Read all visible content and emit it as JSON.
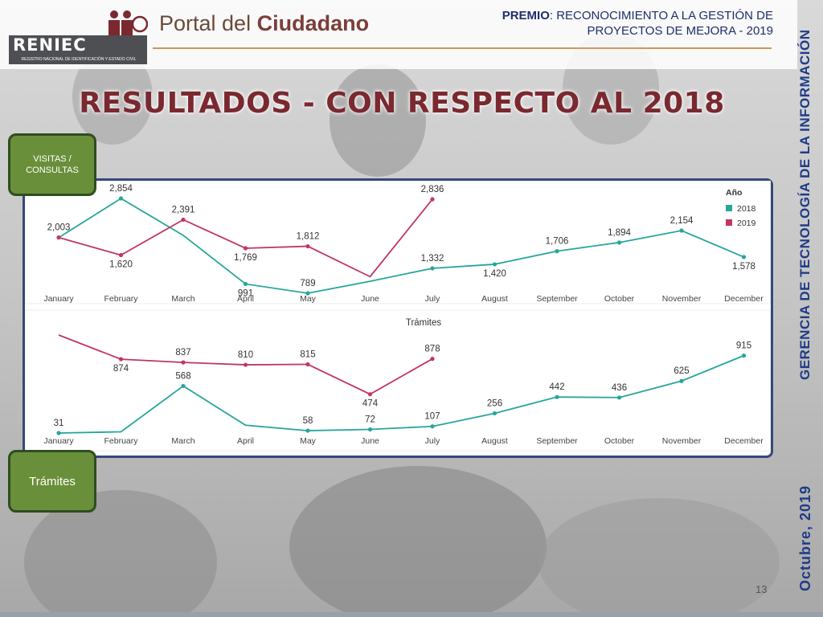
{
  "header": {
    "portal_prefix": "Portal del",
    "portal_bold": "Ciudadano",
    "premio_label": "PREMIO",
    "premio_text": ": RECONOCIMIENTO A LA GESTIÓN DE PROYECTOS DE MEJORA - 2019",
    "logo_text": "RENIEC",
    "logo_subtext": "REGISTRO NACIONAL DE IDENTIFICACIÓN Y ESTADO CIVIL"
  },
  "title": "RESULTADOS - CON RESPECTO AL 2018",
  "sidebar": {
    "gerencia": "GERENCIA DE TECNOLOGÍA DE LA INFORMACIÓN",
    "fecha": "Octubre, 2019"
  },
  "labels": {
    "visitas": "VISITAS / CONSULTAS",
    "tramites": "Trámites"
  },
  "page_number": "13",
  "colors": {
    "series_2018": "#26a69a",
    "series_2019": "#c2365f"
  },
  "chart_data": [
    {
      "type": "line",
      "title": "",
      "categories": [
        "January",
        "February",
        "March",
        "April",
        "May",
        "June",
        "July",
        "August",
        "September",
        "October",
        "November",
        "December"
      ],
      "legend_title": "Año",
      "legend_position": "top-right",
      "series": [
        {
          "name": "2018",
          "values": [
            2000,
            2854,
            2050,
            991,
            789,
            1050,
            1332,
            1420,
            1706,
            1894,
            2154,
            1578
          ],
          "labels": [
            null,
            "2,854",
            null,
            "991",
            "789",
            null,
            "1,332",
            "1,420",
            "1,706",
            "1,894",
            "2,154",
            "1,578"
          ]
        },
        {
          "name": "2019",
          "values": [
            2003,
            1620,
            2391,
            1769,
            1812,
            1150,
            2836,
            null,
            null,
            null,
            null,
            null
          ],
          "labels": [
            "2,003",
            "1,620",
            "2,391",
            "1,769",
            "1,812",
            null,
            "2,836",
            null,
            null,
            null,
            null,
            null
          ]
        }
      ]
    },
    {
      "type": "line",
      "title": "Trámites",
      "categories": [
        "January",
        "February",
        "March",
        "April",
        "May",
        "June",
        "July",
        "August",
        "September",
        "October",
        "November",
        "December"
      ],
      "series": [
        {
          "name": "2018",
          "values": [
            31,
            45,
            568,
            120,
            58,
            72,
            107,
            256,
            442,
            436,
            625,
            915
          ],
          "labels": [
            "31",
            null,
            "568",
            null,
            "58",
            "72",
            "107",
            "256",
            "442",
            "436",
            "625",
            "915"
          ]
        },
        {
          "name": "2019",
          "values": [
            1150,
            874,
            837,
            810,
            815,
            474,
            878,
            null,
            null,
            null,
            null,
            null
          ],
          "labels": [
            null,
            "874",
            "837",
            "810",
            "815",
            "474",
            "878",
            null,
            null,
            null,
            null,
            null
          ]
        }
      ]
    }
  ]
}
